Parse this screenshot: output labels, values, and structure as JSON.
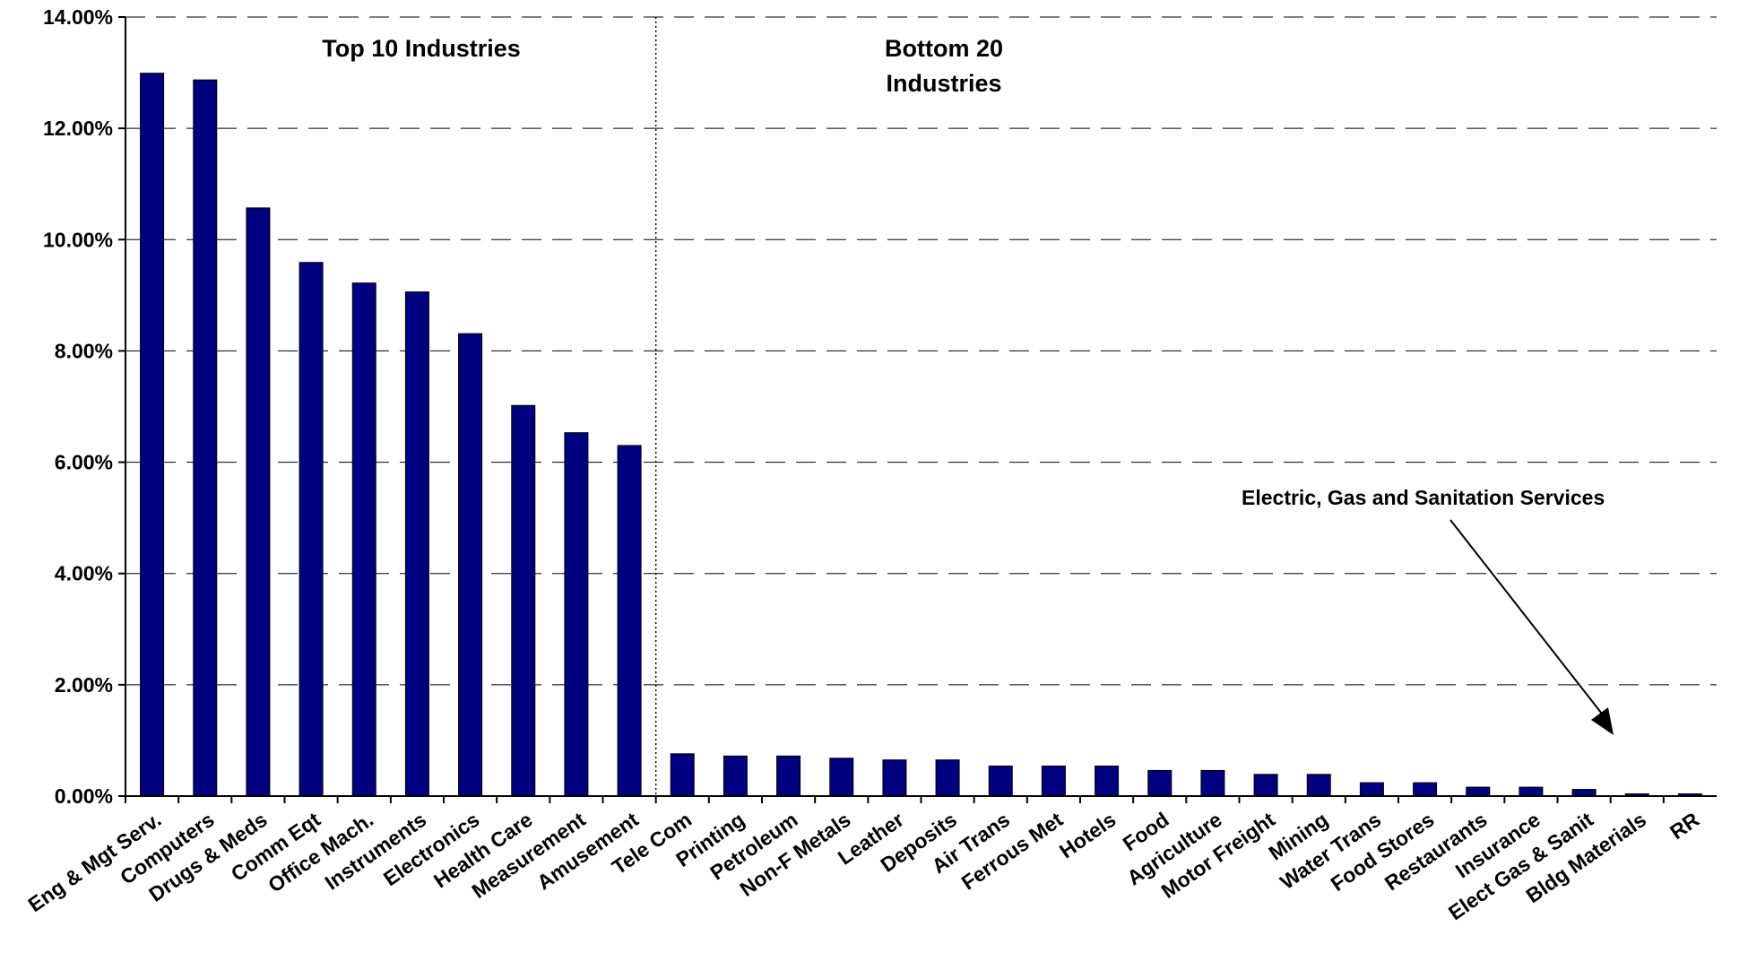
{
  "chart_data": {
    "type": "bar",
    "categories": [
      "Eng & Mgt Serv.",
      "Computers",
      "Drugs & Meds",
      "Comm Eqt",
      "Office Mach.",
      "Instruments",
      "Electronics",
      "Health Care",
      "Measurement",
      "Amusement",
      "Tele Com",
      "Printing",
      "Petroleum",
      "Non-F Metals",
      "Leather",
      "Deposits",
      "Air Trans",
      "Ferrous Met",
      "Hotels",
      "Food",
      "Agriculture",
      "Motor Freight",
      "Mining",
      "Water Trans",
      "Food Stores",
      "Restaurants",
      "Insurance",
      "Elect Gas & Sanit",
      "Bldg Materials",
      "RR"
    ],
    "values": [
      12.99,
      12.87,
      10.57,
      9.59,
      9.22,
      9.06,
      8.31,
      7.02,
      6.53,
      6.3,
      0.76,
      0.72,
      0.72,
      0.68,
      0.65,
      0.65,
      0.54,
      0.54,
      0.54,
      0.46,
      0.46,
      0.39,
      0.39,
      0.24,
      0.24,
      0.16,
      0.16,
      0.12,
      0.04,
      0.04
    ],
    "ylim": [
      0,
      14
    ],
    "y_ticks": [
      "0.00%",
      "2.00%",
      "4.00%",
      "6.00%",
      "8.00%",
      "10.00%",
      "12.00%",
      "14.00%"
    ],
    "grid": "horizontal dashed",
    "bar_color": "#000080",
    "divider_after_category": "Amusement",
    "annotations": {
      "top_group": "Top 10 Industries",
      "bottom_group_line1": "Bottom 20",
      "bottom_group_line2": "Industries",
      "callout": "Electric, Gas and Sanitation Services"
    }
  }
}
